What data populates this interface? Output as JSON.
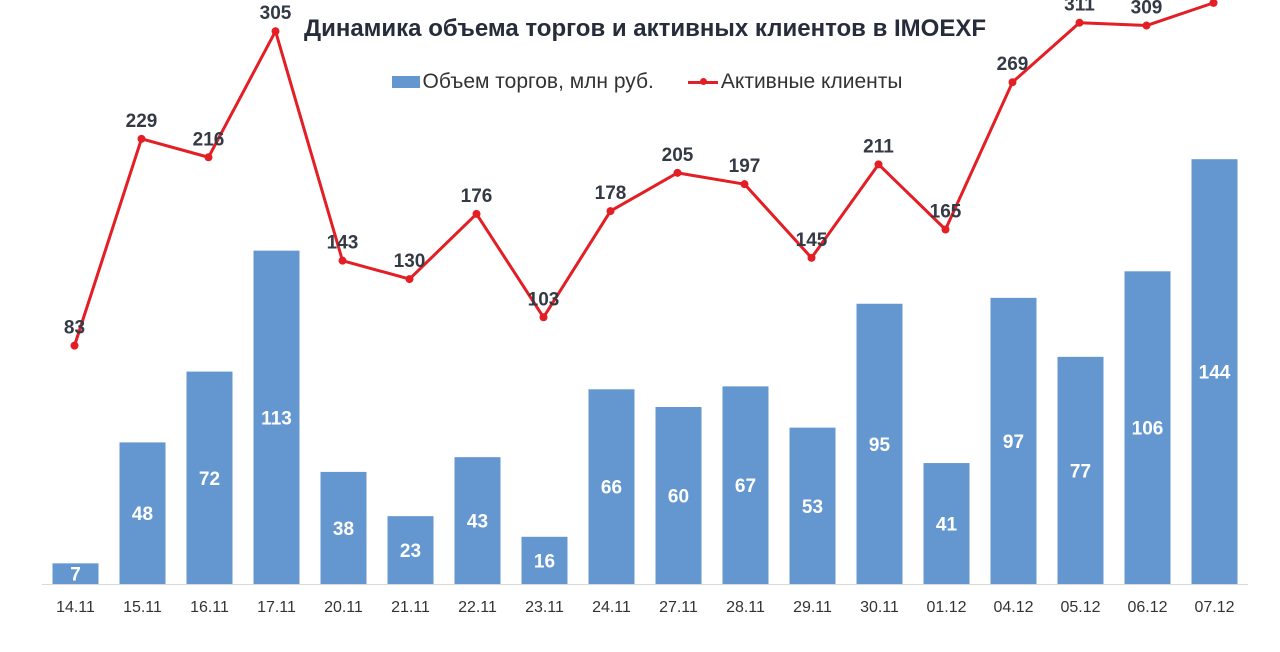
{
  "chart_data": {
    "type": "bar",
    "title": "Динамика объема торгов и активных клиентов в IMOEXF",
    "categories": [
      "14.11",
      "15.11",
      "16.11",
      "17.11",
      "20.11",
      "21.11",
      "22.11",
      "23.11",
      "24.11",
      "27.11",
      "28.11",
      "29.11",
      "30.11",
      "01.12",
      "04.12",
      "05.12",
      "06.12",
      "07.12"
    ],
    "series": [
      {
        "name": "Объем торгов, млн руб.",
        "type": "bar",
        "color": "#6497d0",
        "values": [
          7,
          48,
          72,
          113,
          38,
          23,
          43,
          16,
          66,
          60,
          67,
          53,
          95,
          41,
          97,
          77,
          106,
          144
        ]
      },
      {
        "name": "Активные клиенты",
        "type": "line",
        "color": "#e31e24",
        "values": [
          83,
          229,
          216,
          305,
          143,
          130,
          176,
          103,
          178,
          205,
          197,
          145,
          211,
          165,
          269,
          311,
          309,
          325
        ]
      }
    ],
    "legend_position": "top",
    "grid": false
  }
}
